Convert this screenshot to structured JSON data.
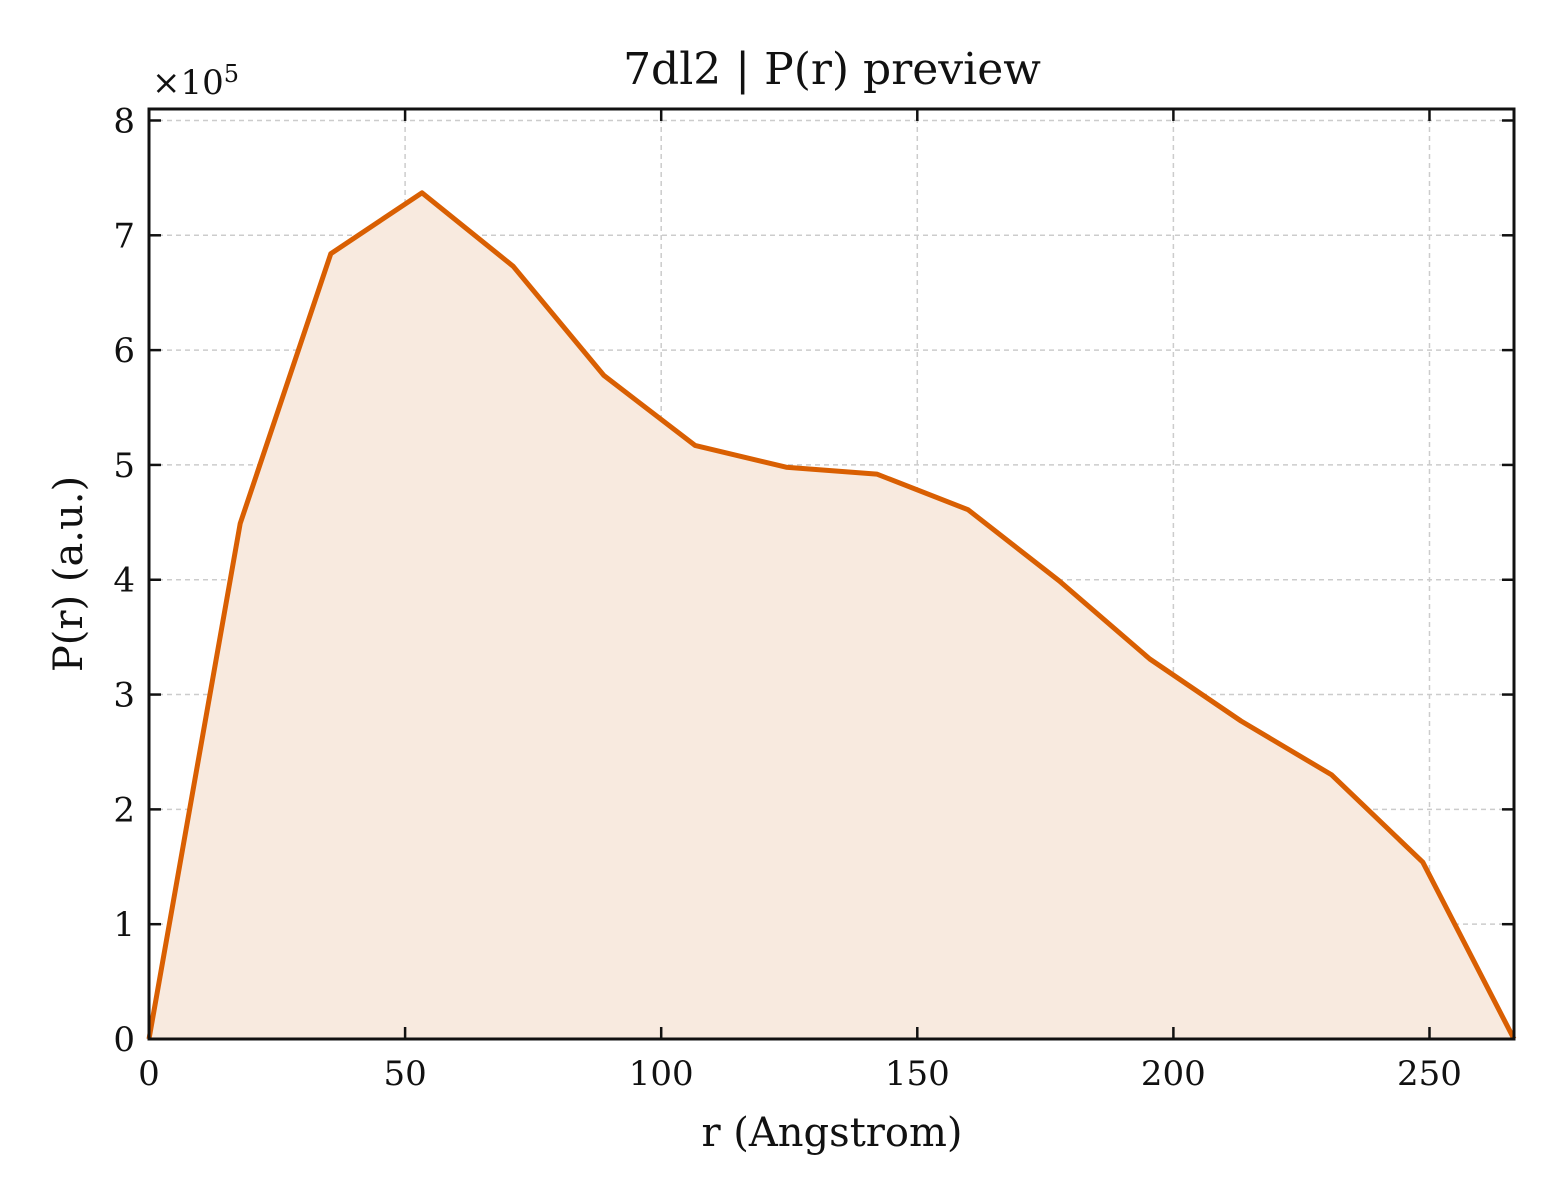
{
  "chart_data": {
    "type": "area",
    "title": "7dl2 | P(r) preview",
    "xlabel": "r (Angstrom)",
    "ylabel": "P(r) (a.u.)",
    "y_scale_label_prefix": "×10",
    "y_scale_label_exp": "5",
    "xlim": [
      0,
      266.5
    ],
    "ylim": [
      0,
      8.1
    ],
    "x_ticks": [
      0,
      50,
      100,
      150,
      200,
      250
    ],
    "y_ticks": [
      0,
      1,
      2,
      3,
      4,
      5,
      6,
      7,
      8
    ],
    "grid": true,
    "line_color": "#d95f02",
    "fill_color": "#f8eadf",
    "series": [
      {
        "x": [
          0,
          17.8,
          35.5,
          53.3,
          71.1,
          88.8,
          106.6,
          124.4,
          142.1,
          159.9,
          177.7,
          195.4,
          213.2,
          230.9,
          248.7,
          266.5
        ],
        "y": [
          0,
          4.49,
          6.84,
          7.37,
          6.73,
          5.78,
          5.17,
          4.98,
          4.92,
          4.61,
          3.99,
          3.31,
          2.77,
          2.3,
          1.54,
          0
        ]
      }
    ]
  }
}
